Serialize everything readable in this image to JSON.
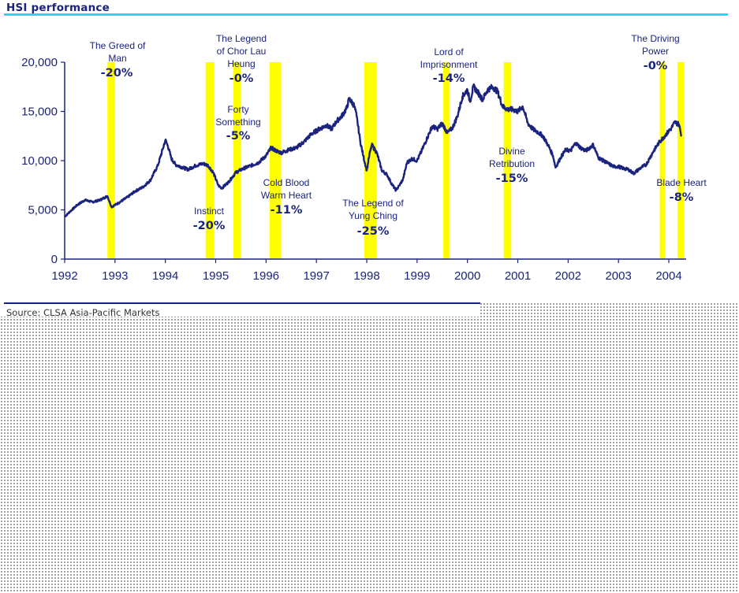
{
  "header": {
    "title": "HSI performance"
  },
  "footer": {
    "source": "Source: CLSA Asia-Pacific Markets"
  },
  "chart_data": {
    "type": "line",
    "title": "HSI performance",
    "xlabel": "",
    "ylabel": "",
    "xlim": [
      1992,
      2004.4
    ],
    "ylim": [
      0,
      20000
    ],
    "x_ticks": [
      1992,
      1993,
      1994,
      1995,
      1996,
      1997,
      1998,
      1999,
      2000,
      2001,
      2002,
      2003,
      2004
    ],
    "y_ticks": [
      0,
      5000,
      10000,
      15000,
      20000
    ],
    "y_tick_labels": [
      "0",
      "5,000",
      "10,000",
      "15,000",
      "20,000"
    ],
    "grid": false,
    "colors": {
      "line": "#1a237e",
      "band": "#ffff00",
      "rule": "#29d8ec",
      "text": "#1a237e"
    },
    "series": [
      {
        "x": [
          1992.0,
          1992.1,
          1992.25,
          1992.4,
          1992.55,
          1992.7,
          1992.85,
          1992.93,
          1993.0,
          1993.1,
          1993.25,
          1993.4,
          1993.55,
          1993.7,
          1993.85,
          1993.95,
          1994.0,
          1994.05,
          1994.12,
          1994.2,
          1994.3,
          1994.45,
          1994.6,
          1994.75,
          1994.85,
          1994.95,
          1995.05,
          1995.12,
          1995.25,
          1995.4,
          1995.55,
          1995.7,
          1995.85,
          1996.0,
          1996.1,
          1996.2,
          1996.3,
          1996.45,
          1996.6,
          1996.75,
          1996.9,
          1997.05,
          1997.2,
          1997.3,
          1997.4,
          1997.5,
          1997.6,
          1997.65,
          1997.75,
          1997.8,
          1997.87,
          1997.93,
          1998.0,
          1998.05,
          1998.1,
          1998.2,
          1998.3,
          1998.4,
          1998.5,
          1998.58,
          1998.65,
          1998.72,
          1998.8,
          1998.9,
          1999.0,
          1999.1,
          1999.2,
          1999.3,
          1999.4,
          1999.5,
          1999.6,
          1999.7,
          1999.8,
          1999.9,
          2000.0,
          2000.05,
          2000.12,
          2000.2,
          2000.3,
          2000.4,
          2000.5,
          2000.6,
          2000.7,
          2000.8,
          2000.9,
          2001.0,
          2001.1,
          2001.2,
          2001.3,
          2001.4,
          2001.5,
          2001.6,
          2001.7,
          2001.75,
          2001.85,
          2001.95,
          2002.05,
          2002.15,
          2002.25,
          2002.35,
          2002.5,
          2002.6,
          2002.7,
          2002.8,
          2002.9,
          2003.0,
          2003.1,
          2003.2,
          2003.3,
          2003.45,
          2003.55,
          2003.7,
          2003.8,
          2003.9,
          2004.0,
          2004.05,
          2004.12,
          2004.2,
          2004.25
        ],
        "y": [
          4300,
          4800,
          5500,
          6000,
          5800,
          6000,
          6400,
          5300,
          5500,
          5800,
          6300,
          6900,
          7300,
          8000,
          9500,
          11200,
          12100,
          11500,
          10200,
          9600,
          9400,
          9100,
          9500,
          9700,
          9500,
          8800,
          7500,
          7200,
          7800,
          8800,
          9200,
          9500,
          9800,
          10500,
          11300,
          11000,
          10800,
          11100,
          11300,
          11900,
          12700,
          13200,
          13600,
          13200,
          14000,
          14500,
          15300,
          16300,
          15600,
          14500,
          12000,
          10500,
          9000,
          10500,
          11600,
          10800,
          9000,
          8600,
          7600,
          7000,
          7500,
          8100,
          9800,
          10200,
          10000,
          11100,
          12300,
          13500,
          13200,
          13800,
          12800,
          13300,
          14500,
          16500,
          17200,
          16000,
          17500,
          17000,
          16200,
          17200,
          17500,
          17000,
          15500,
          15200,
          15200,
          15000,
          15500,
          13800,
          13200,
          12900,
          12500,
          11600,
          10500,
          9300,
          10300,
          11100,
          11000,
          11800,
          11300,
          11000,
          11600,
          10300,
          10000,
          9700,
          9400,
          9400,
          9200,
          9100,
          8700,
          9300,
          9600,
          11000,
          11800,
          12400,
          13000,
          13300,
          13900,
          13700,
          12600
        ]
      }
    ],
    "bands": [
      {
        "x_start": 1992.85,
        "x_end": 1993.0,
        "label": "The Greed of Man",
        "change": "-20%"
      },
      {
        "x_start": 1994.8,
        "x_end": 1994.97,
        "label": "Instinct",
        "change": "-20%"
      },
      {
        "x_start": 1995.35,
        "x_end": 1995.5,
        "label": "Forty Something",
        "change": "-5%"
      },
      {
        "x_start": 1996.07,
        "x_end": 1996.3,
        "label": "Cold Blood Warm Heart",
        "change": "-11%"
      },
      {
        "x_start": 1997.95,
        "x_end": 1998.2,
        "label": "The Legend of Yung Ching",
        "change": "-25%"
      },
      {
        "x_start": 1999.52,
        "x_end": 1999.65,
        "label": "Lord of Imprisonment",
        "change": "-14%"
      },
      {
        "x_start": 2000.72,
        "x_end": 2000.87,
        "label": "Divine Retribution",
        "change": "-15%"
      },
      {
        "x_start": 2003.82,
        "x_end": 2003.92,
        "label": "The Driving Power",
        "change": "-0%"
      },
      {
        "x_start": 2004.17,
        "x_end": 2004.3,
        "label": "Blade Heart",
        "change": "-8%"
      }
    ],
    "extra_annotations": [
      {
        "label": "The Legend of Chor Lau Heung",
        "change": "-0%"
      }
    ]
  }
}
